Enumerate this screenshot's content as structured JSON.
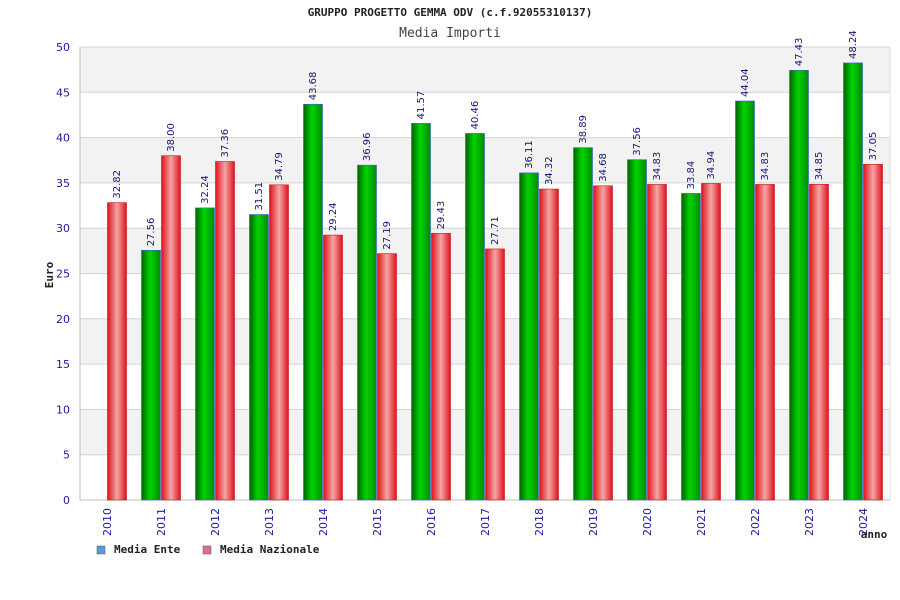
{
  "chart_data": {
    "type": "bar",
    "title": "GRUPPO PROGETTO GEMMA ODV (c.f.92055310137)",
    "subtitle": "Media Importi",
    "xlabel": "anno",
    "ylabel": "Euro",
    "ylim": [
      0,
      50
    ],
    "yticks": [
      "0",
      "5",
      "10",
      "15",
      "20",
      "25",
      "30",
      "35",
      "40",
      "45",
      "50"
    ],
    "grid": true,
    "legend_position": "bottom-left",
    "categories": [
      "2010",
      "2011",
      "2012",
      "2013",
      "2014",
      "2015",
      "2016",
      "2017",
      "2018",
      "2019",
      "2020",
      "2021",
      "2022",
      "2023",
      "2024"
    ],
    "series": [
      {
        "name": "Media Ente",
        "color": "#00b000",
        "legend_color": "#5b9bd5",
        "values": [
          null,
          27.56,
          32.24,
          31.51,
          43.68,
          36.96,
          41.57,
          40.46,
          36.11,
          38.89,
          37.56,
          33.84,
          44.04,
          47.43,
          48.24
        ],
        "labels": [
          "",
          "27.56",
          "32.24",
          "31.51",
          "43.68",
          "36.96",
          "41.57",
          "40.46",
          "36.11",
          "38.89",
          "37.56",
          "33.84",
          "44.04",
          "47.43",
          "48.24"
        ]
      },
      {
        "name": "Media Nazionale",
        "color": "#e8202a",
        "legend_color": "#d87093",
        "values": [
          32.82,
          38.0,
          37.36,
          34.79,
          29.24,
          27.19,
          29.43,
          27.71,
          34.32,
          34.68,
          34.83,
          34.94,
          34.83,
          34.85,
          37.05
        ],
        "labels": [
          "32.82",
          "38.00",
          "37.36",
          "34.79",
          "29.24",
          "27.19",
          "29.43",
          "27.71",
          "34.32",
          "34.68",
          "34.83",
          "34.94",
          "34.83",
          "34.85",
          "37.05"
        ]
      }
    ]
  }
}
